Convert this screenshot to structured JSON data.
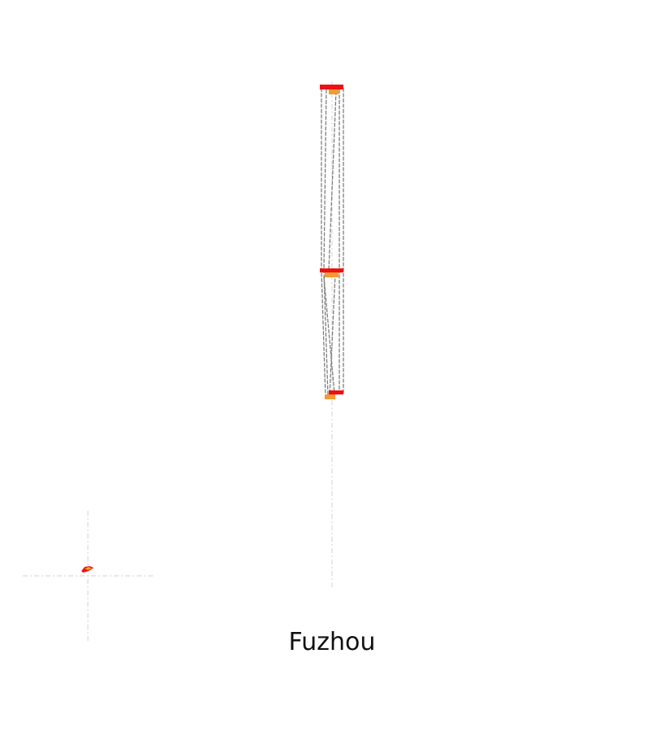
{
  "map": {
    "city_name": "Fuzhou",
    "colors": {
      "marker_primary": "#ee1111",
      "marker_secondary": "#f59a2e",
      "outline": "#7f7f7f",
      "guide": "#d9d9d9",
      "background": "#ffffff"
    }
  }
}
